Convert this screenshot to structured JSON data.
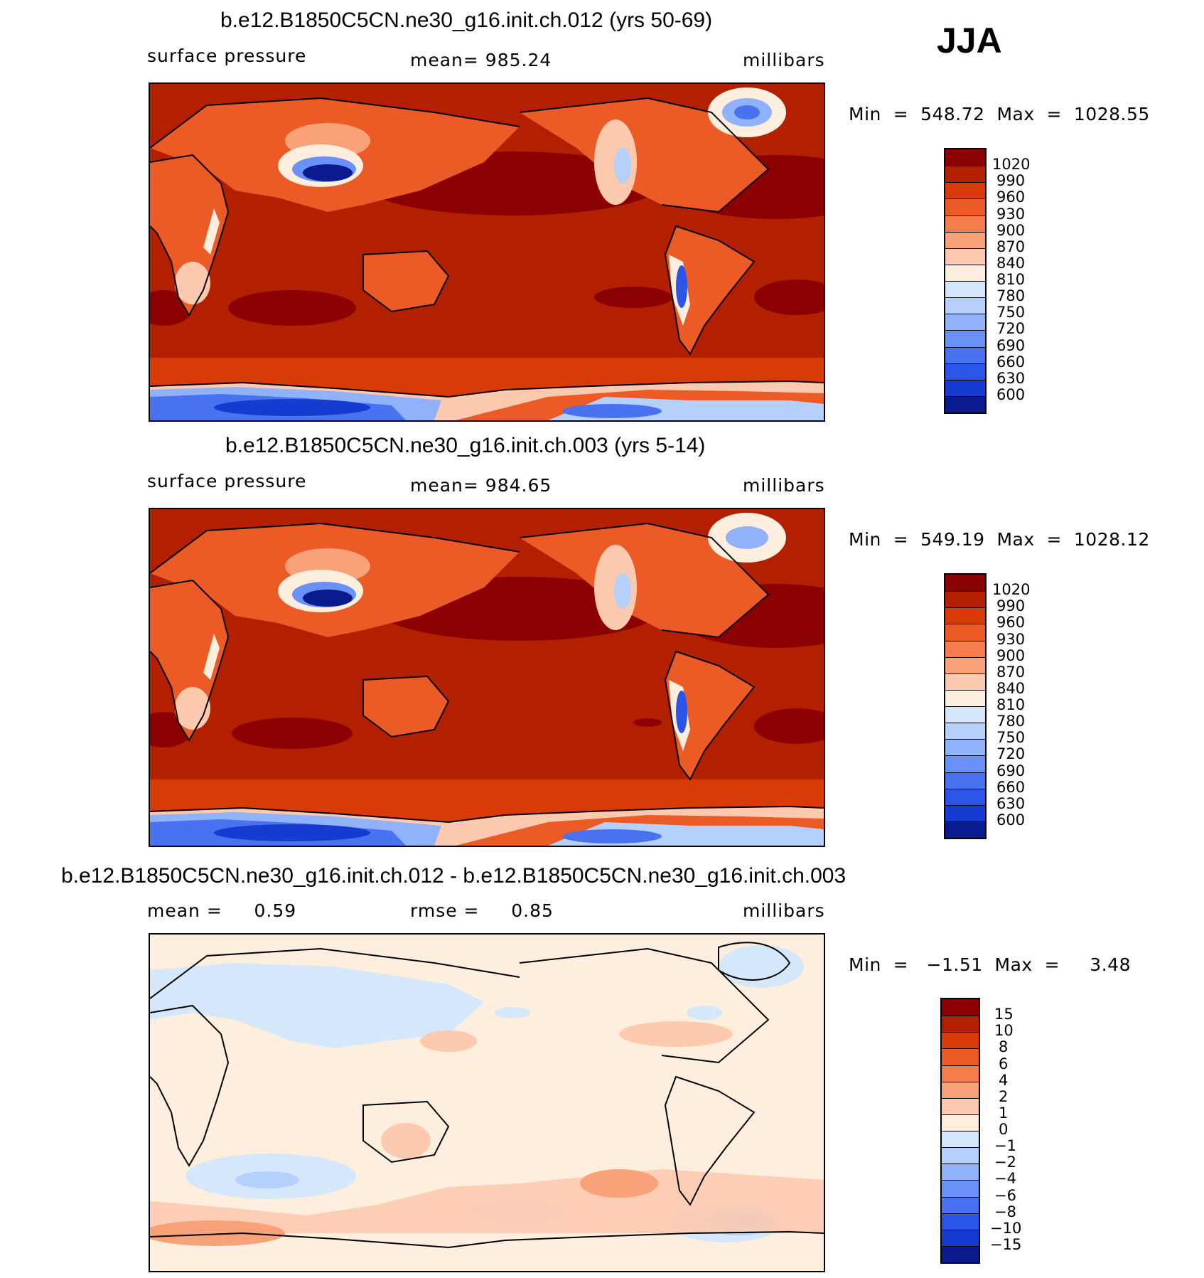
{
  "season": "JJA",
  "panels": [
    {
      "title": "b.e12.B1850C5CN.ne30_g16.init.ch.012 (yrs 50-69)",
      "left_label": "surface pressure",
      "center_label": "mean=  985.24",
      "right_label": "millibars",
      "minmax": "Min  =  548.72  Max  =  1028.55",
      "kind": "abs"
    },
    {
      "title": "b.e12.B1850C5CN.ne30_g16.init.ch.003 (yrs 5-14)",
      "left_label": "surface pressure",
      "center_label": "mean=  984.65",
      "right_label": "millibars",
      "minmax": "Min  =  549.19  Max  =  1028.12",
      "kind": "abs"
    },
    {
      "title": "b.e12.B1850C5CN.ne30_g16.init.ch.012 - b.e12.B1850C5CN.ne30_g16.init.ch.003",
      "left_label": "mean =     0.59",
      "center_label": "rmse =     0.85",
      "right_label": "millibars",
      "minmax": "Min  =   −1.51  Max  =     3.48",
      "kind": "diff"
    }
  ],
  "colorbars": {
    "abs": {
      "labels": [
        "1020",
        "990",
        "960",
        "930",
        "900",
        "870",
        "840",
        "810",
        "780",
        "750",
        "720",
        "690",
        "660",
        "630",
        "600"
      ],
      "colors": [
        "#8b0000",
        "#b22000",
        "#d83a08",
        "#ec5a26",
        "#f57c4c",
        "#f9a27a",
        "#fdcab0",
        "#fdeedd",
        "#d5e8fb",
        "#b5d0fb",
        "#8fb2fb",
        "#6a91f8",
        "#4872f0",
        "#2a55e8",
        "#153bd0",
        "#0a1a8f"
      ]
    },
    "diff": {
      "labels": [
        "15",
        "10",
        "8",
        "6",
        "4",
        "2",
        "1",
        "0",
        "−1",
        "−2",
        "−4",
        "−6",
        "−8",
        "−10",
        "−15"
      ],
      "colors": [
        "#8b0000",
        "#b22000",
        "#d83a08",
        "#ec5a26",
        "#f57c4c",
        "#f9a27a",
        "#fdcab0",
        "#fdeedd",
        "#d5e8fb",
        "#b5d0fb",
        "#8fb2fb",
        "#6a91f8",
        "#4872f0",
        "#2a55e8",
        "#153bd0",
        "#0a1a8f"
      ]
    }
  }
}
